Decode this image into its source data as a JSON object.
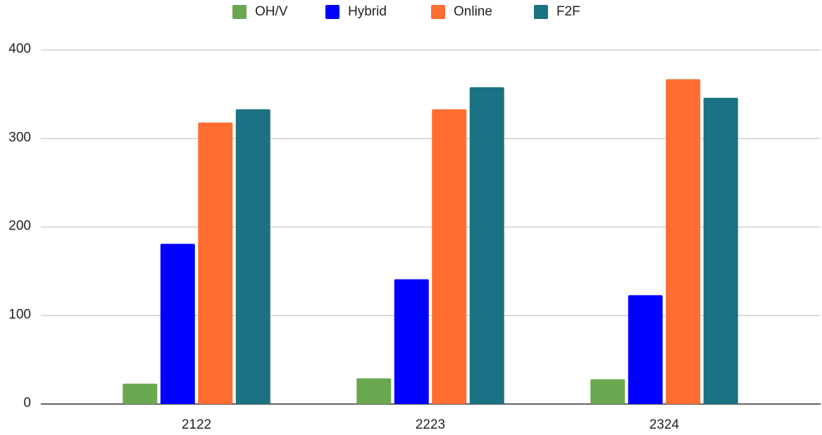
{
  "chart_data": {
    "type": "bar",
    "categories": [
      "2122",
      "2223",
      "2324"
    ],
    "series": [
      {
        "name": "OH/V",
        "color": "#6aa84f",
        "values": [
          23,
          29,
          28
        ]
      },
      {
        "name": "Hybrid",
        "color": "#0000ff",
        "values": [
          181,
          141,
          123
        ]
      },
      {
        "name": "Online",
        "color": "#ff6d31",
        "values": [
          318,
          333,
          367
        ]
      },
      {
        "name": "F2F",
        "color": "#1b7282",
        "values": [
          333,
          358,
          346
        ]
      }
    ],
    "ylim": [
      0,
      400
    ],
    "yticks": [
      0,
      100,
      200,
      300,
      400
    ],
    "grid": true,
    "legend": "top"
  }
}
